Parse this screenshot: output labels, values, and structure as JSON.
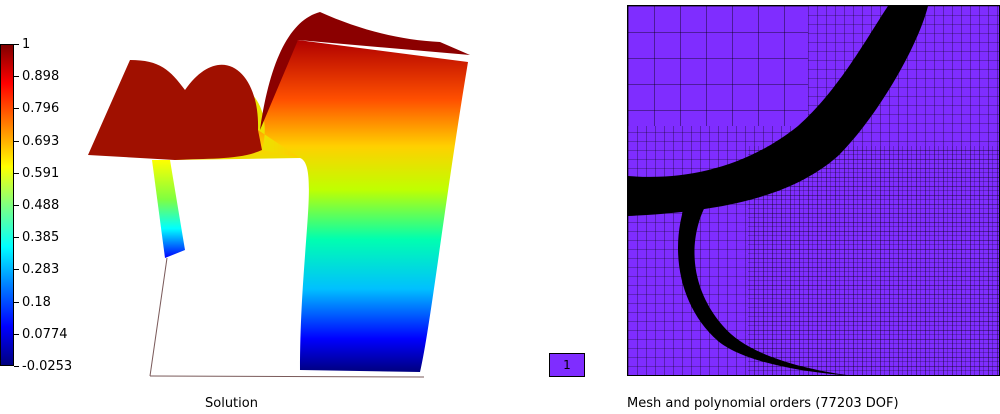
{
  "solution": {
    "caption": "Solution",
    "colorbar_ticks": [
      "1",
      "0.898",
      "0.796",
      "0.693",
      "0.591",
      "0.488",
      "0.385",
      "0.283",
      "0.18",
      "0.0774",
      "-0.0253"
    ]
  },
  "mesh": {
    "caption": "Mesh and polynomial orders (77203 DOF)",
    "order_legend": [
      "1"
    ],
    "order_color": "#7f2dff"
  }
}
